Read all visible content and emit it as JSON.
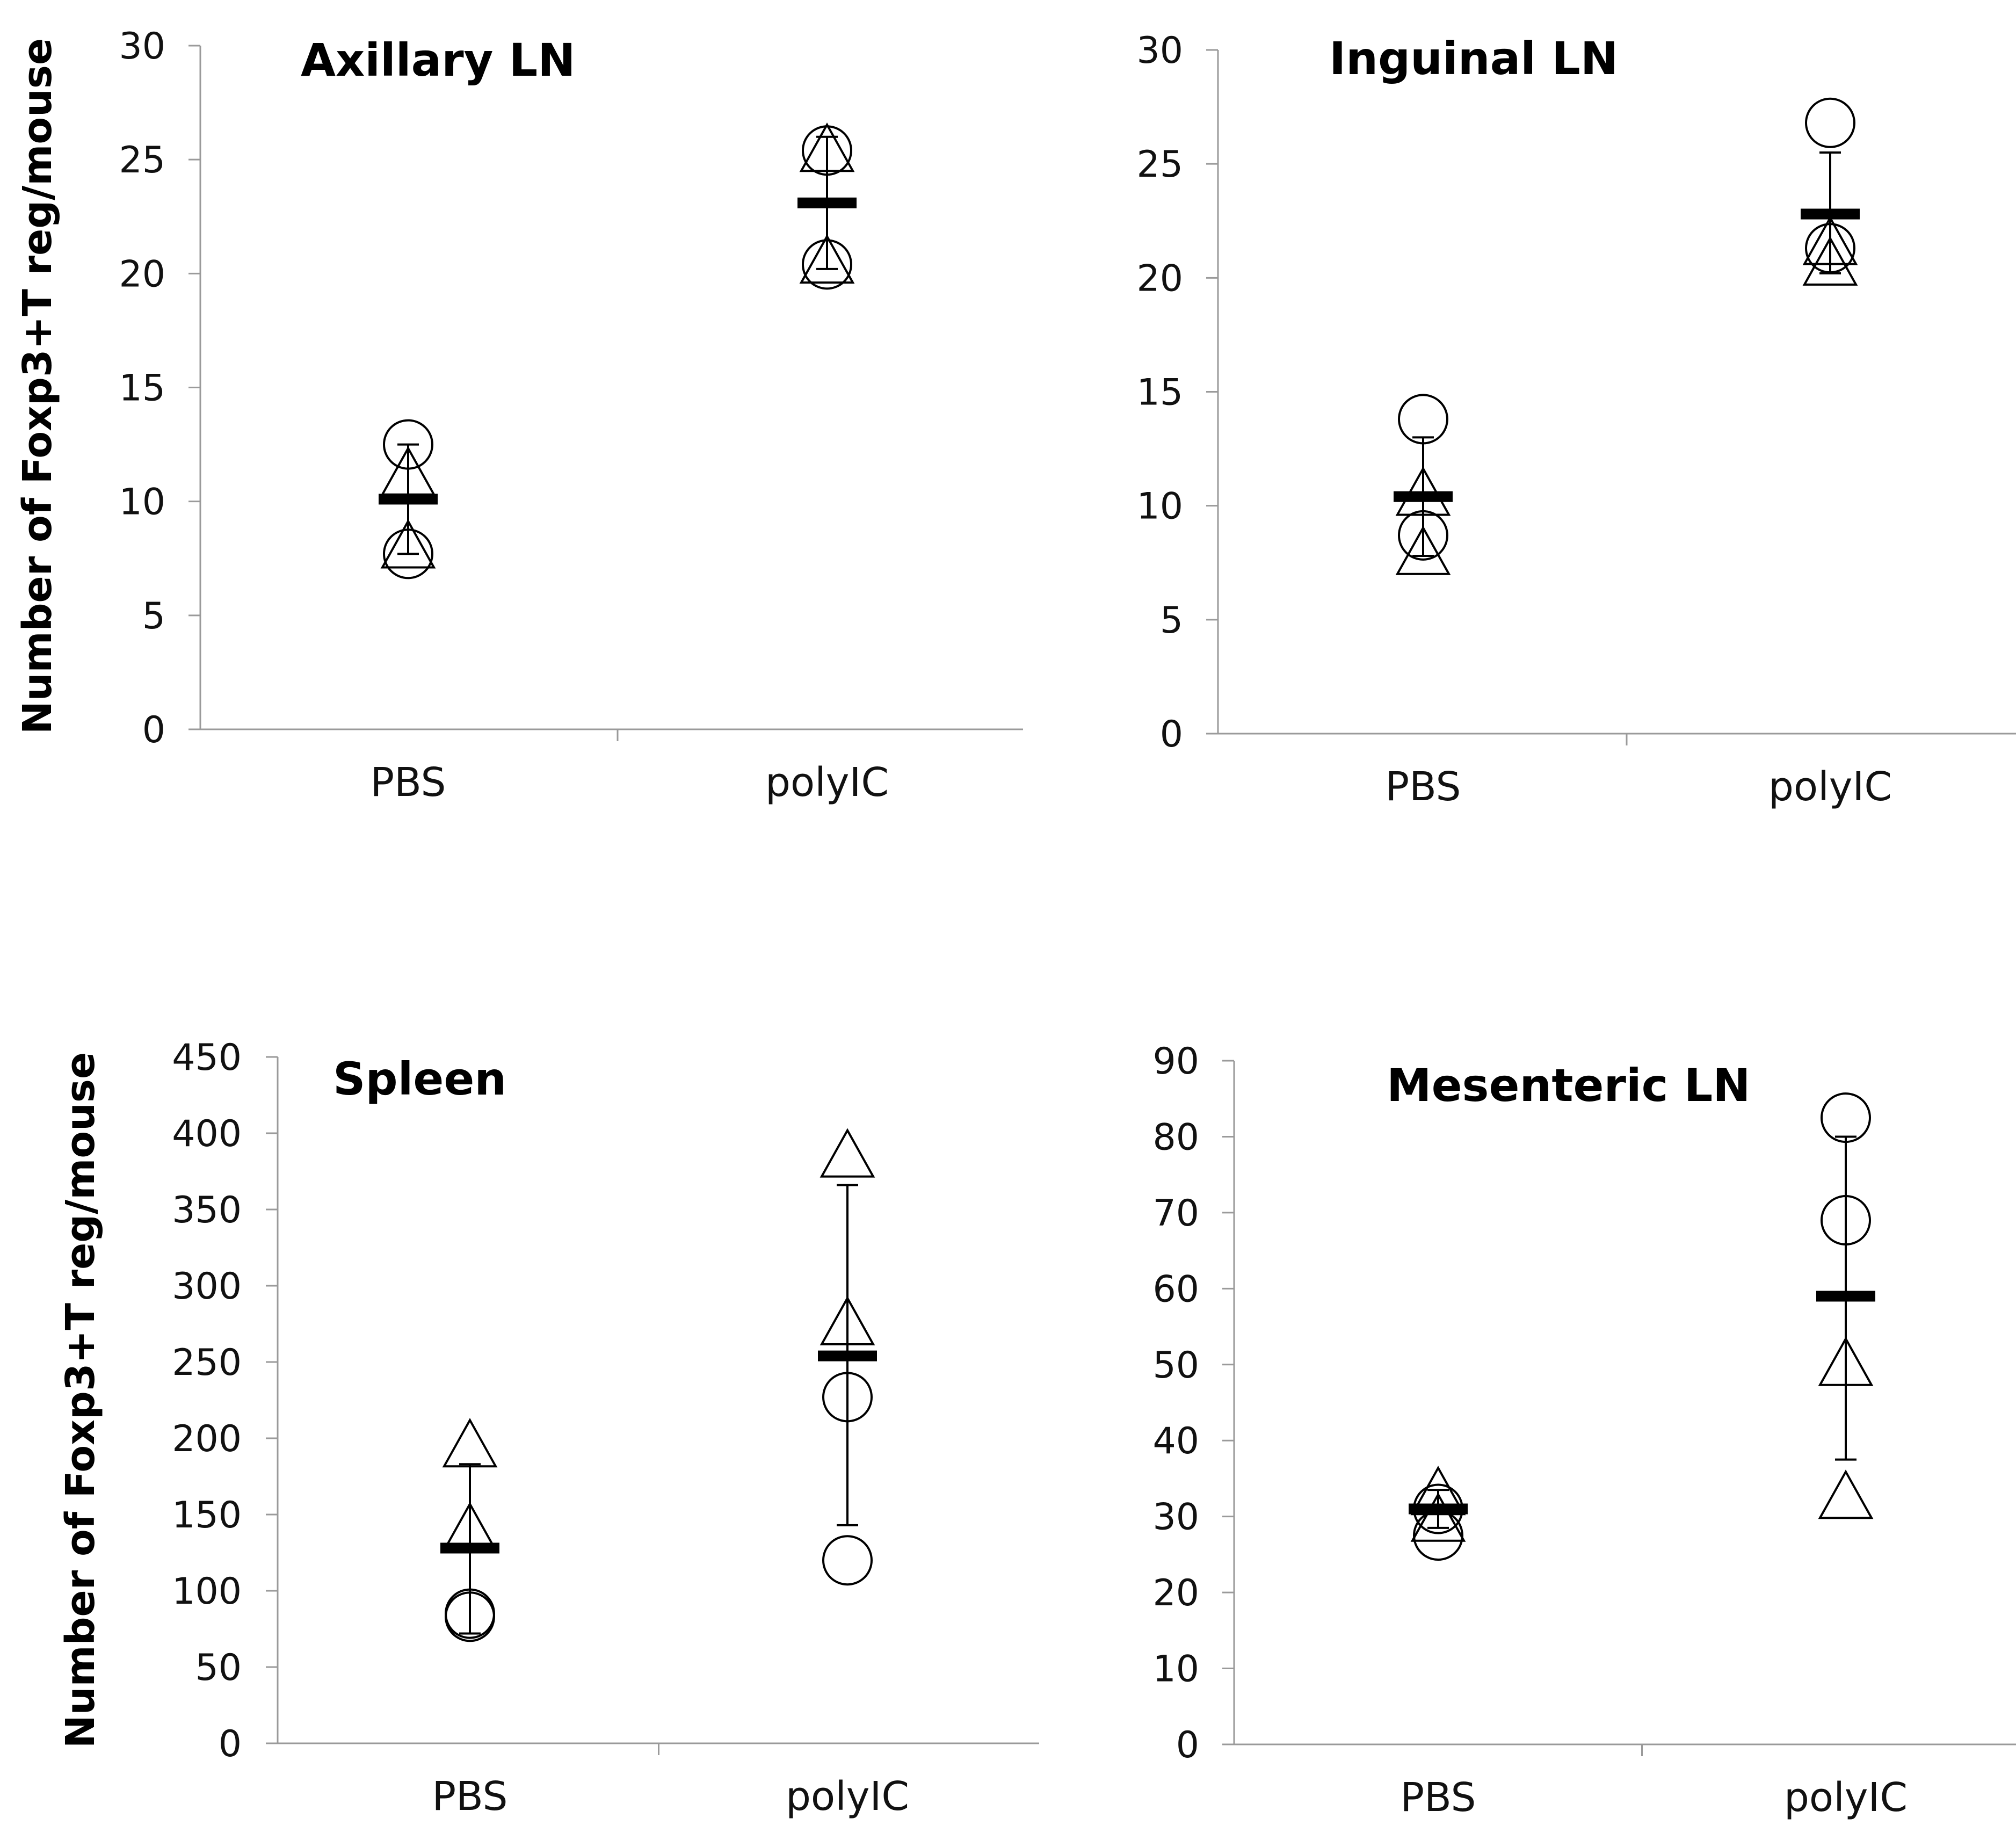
{
  "chart_data": [
    {
      "type": "scatter",
      "title": "Axillary LN",
      "ylabel": "Number of Foxp3+T reg/mouse",
      "xlabel": "",
      "categories": [
        "PBS",
        "polyIC"
      ],
      "ylim": [
        0,
        30
      ],
      "yticks": [
        "0",
        "5",
        "10",
        "15",
        "20",
        "25",
        "30"
      ],
      "grid": false,
      "series": [
        {
          "marker": "circle",
          "values": [
            [
              12.5,
              7.7
            ],
            [
              25.4,
              20.4
            ]
          ]
        },
        {
          "marker": "triangle",
          "values": [
            [
              11.2,
              8.0
            ],
            [
              25.4,
              20.5
            ]
          ]
        }
      ],
      "mean": [
        10.1,
        23.1
      ],
      "error_low": [
        7.7,
        20.2
      ],
      "error_high": [
        12.5,
        26.0
      ]
    },
    {
      "type": "scatter",
      "title": "Inguinal LN",
      "ylabel": "",
      "xlabel": "",
      "categories": [
        "PBS",
        "polyIC"
      ],
      "ylim": [
        0,
        30
      ],
      "yticks": [
        "0",
        "5",
        "10",
        "15",
        "20",
        "25",
        "30"
      ],
      "grid": false,
      "series": [
        {
          "marker": "circle",
          "values": [
            [
              13.8,
              8.7
            ],
            [
              26.8,
              21.3
            ]
          ]
        },
        {
          "marker": "triangle",
          "values": [
            [
              10.5,
              7.9
            ],
            [
              21.5,
              20.6
            ]
          ]
        }
      ],
      "mean": [
        10.4,
        22.8
      ],
      "error_low": [
        7.8,
        20.2
      ],
      "error_high": [
        13.0,
        25.5
      ]
    },
    {
      "type": "scatter",
      "title": "Spleen",
      "ylabel": "Number of Foxp3+T reg/mouse",
      "xlabel": "",
      "categories": [
        "PBS",
        "polyIC"
      ],
      "ylim": [
        0,
        450
      ],
      "yticks": [
        "0",
        "50",
        "100",
        "150",
        "200",
        "250",
        "300",
        "350",
        "400",
        "450"
      ],
      "grid": false,
      "series": [
        {
          "marker": "circle",
          "values": [
            [
              85,
              83
            ],
            [
              227,
              120
            ]
          ]
        },
        {
          "marker": "triangle",
          "values": [
            [
              195,
              140
            ],
            [
              385,
              275
            ]
          ]
        }
      ],
      "mean": [
        128,
        254
      ],
      "error_low": [
        72,
        143
      ],
      "error_high": [
        183,
        366
      ]
    },
    {
      "type": "scatter",
      "title": "Mesenteric LN",
      "ylabel": "",
      "xlabel": "",
      "categories": [
        "PBS",
        "polyIC"
      ],
      "ylim": [
        0,
        90
      ],
      "yticks": [
        "0",
        "10",
        "20",
        "30",
        "40",
        "50",
        "60",
        "70",
        "80",
        "90"
      ],
      "grid": false,
      "series": [
        {
          "marker": "circle",
          "values": [
            [
              31,
              27.5
            ],
            [
              82.5,
              69
            ]
          ]
        },
        {
          "marker": "triangle",
          "values": [
            [
              33,
              29.5
            ],
            [
              50,
              32.5
            ]
          ]
        }
      ],
      "mean": [
        31,
        59
      ],
      "error_low": [
        28.5,
        37.5
      ],
      "error_high": [
        33.5,
        80
      ]
    }
  ]
}
